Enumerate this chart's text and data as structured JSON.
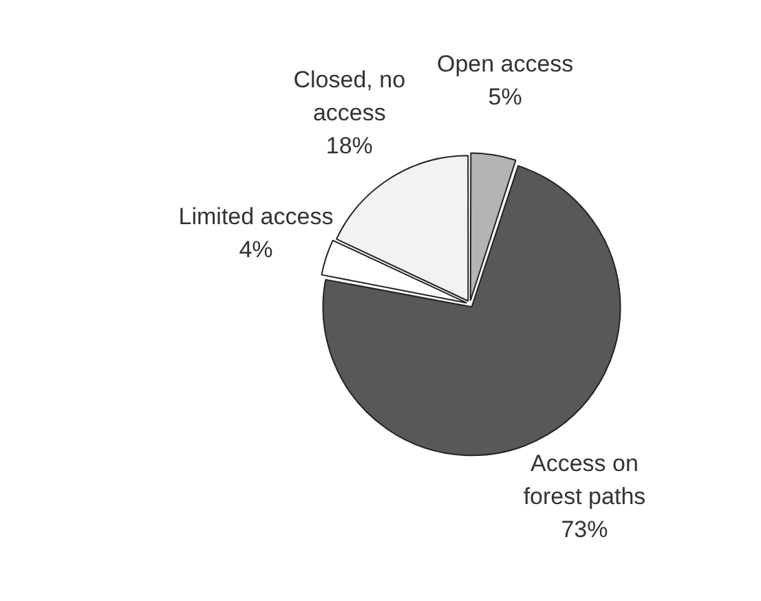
{
  "chart_data": {
    "type": "pie",
    "categories": [
      "Open access",
      "Access on forest paths",
      "Limited access",
      "Closed, no access"
    ],
    "values": [
      5,
      73,
      4,
      18
    ],
    "colors": [
      "#b4b4b4",
      "#585858",
      "#ffffff",
      "#f2f2f2"
    ],
    "value_labels": [
      "5%",
      "73%",
      "4%",
      "18%"
    ],
    "legend": false
  }
}
